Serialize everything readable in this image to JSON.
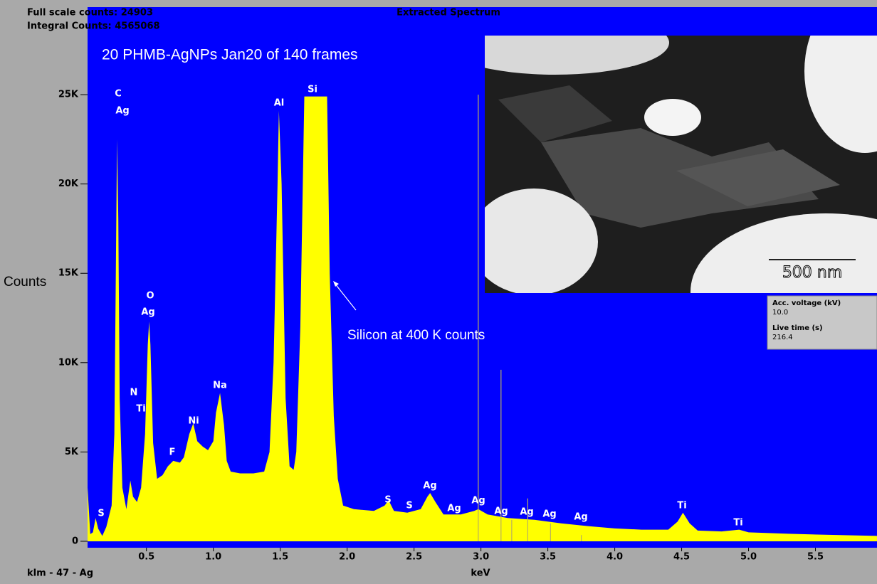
{
  "chart_data": {
    "type": "area",
    "header_left": [
      "Full scale counts: 24903",
      "Integral Counts: 4565068"
    ],
    "title": "Extracted Spectrum",
    "subtitle": "20 PHMB-AgNPs Jan20 of 140 frames",
    "y_label": "Counts",
    "x_label": "keV",
    "footer_left": "klm - 47 - Ag",
    "annotation": "Silicon at 400 K counts",
    "scale_bar": "500 nm",
    "info": [
      "Acc. voltage (kV)",
      "10.0",
      "Live time (s)",
      "216.4"
    ],
    "color": "#ffff00",
    "background": "#0000ff",
    "xlim": [
      0.06,
      5.96
    ],
    "ylim": [
      -360,
      29900
    ],
    "xticks": [
      0.5,
      {
        "value": 1,
        "label": "1.0"
      },
      1.5,
      {
        "value": 2,
        "label": "2.0"
      },
      2.5,
      {
        "value": 3,
        "label": "3.0"
      },
      3.5,
      {
        "value": 4,
        "label": "4.0"
      },
      4.5,
      {
        "value": 5,
        "label": "5.0"
      },
      5.5
    ],
    "yticks": [
      0,
      {
        "value": 5000,
        "label": "5K"
      },
      {
        "value": 10000,
        "label": "10K"
      },
      {
        "value": 15000,
        "label": "15K"
      },
      {
        "value": 20000,
        "label": "20K"
      },
      {
        "value": 25000,
        "label": "25K"
      }
    ],
    "x": [
      0.06,
      0.08,
      0.1,
      0.12,
      0.14,
      0.17,
      0.2,
      0.24,
      0.26,
      0.27,
      0.28,
      0.29,
      0.3,
      0.32,
      0.35,
      0.38,
      0.4,
      0.43,
      0.46,
      0.49,
      0.51,
      0.52,
      0.53,
      0.55,
      0.58,
      0.62,
      0.66,
      0.7,
      0.75,
      0.78,
      0.82,
      0.85,
      0.88,
      0.92,
      0.96,
      1.0,
      1.02,
      1.05,
      1.08,
      1.1,
      1.13,
      1.2,
      1.3,
      1.38,
      1.42,
      1.45,
      1.48,
      1.49,
      1.51,
      1.54,
      1.57,
      1.6,
      1.62,
      1.65,
      1.68,
      1.85,
      1.87,
      1.9,
      1.93,
      1.97,
      2.05,
      2.2,
      2.28,
      2.31,
      2.35,
      2.45,
      2.55,
      2.6,
      2.62,
      2.66,
      2.72,
      2.85,
      2.95,
      2.98,
      3.05,
      3.2,
      3.4,
      3.6,
      3.8,
      4.0,
      4.2,
      4.4,
      4.47,
      4.51,
      4.56,
      4.62,
      4.8,
      4.93,
      5.0,
      5.3,
      5.6,
      5.96
    ],
    "values": [
      3000,
      400,
      500,
      1300,
      700,
      300,
      800,
      2000,
      6000,
      14000,
      22500,
      18000,
      8000,
      3000,
      1800,
      3400,
      2500,
      2200,
      3000,
      6000,
      11000,
      12300,
      11000,
      5500,
      3500,
      3700,
      4200,
      4500,
      4400,
      4700,
      6000,
      6600,
      5600,
      5300,
      5100,
      5600,
      7200,
      8300,
      6500,
      4500,
      3900,
      3800,
      3800,
      3900,
      5000,
      10000,
      20000,
      24100,
      20000,
      8000,
      4200,
      4000,
      5000,
      12000,
      24900,
      24900,
      15000,
      7000,
      3500,
      2000,
      1800,
      1700,
      2000,
      2300,
      1700,
      1600,
      1800,
      2500,
      2700,
      2200,
      1500,
      1500,
      1700,
      1800,
      1500,
      1300,
      1200,
      1000,
      850,
      720,
      650,
      650,
      1100,
      1600,
      1000,
      600,
      550,
      650,
      500,
      420,
      360,
      300
    ],
    "marker_lines": {
      "x": [
        2.98,
        3.15,
        3.23,
        3.35,
        3.52,
        3.75
      ],
      "values": [
        25000,
        9600,
        1200,
        2400,
        1000,
        350
      ]
    },
    "peak_labels": [
      "C",
      "Ag",
      "O",
      "Ag",
      "N",
      "Ti",
      "F",
      "Ni",
      "Na",
      "Al",
      "Si",
      "S",
      "S",
      "S",
      "Ag",
      "Ag",
      "Ag",
      "Ag",
      "Ag",
      "Ag",
      "Ag",
      "Ti",
      "Ti"
    ]
  }
}
